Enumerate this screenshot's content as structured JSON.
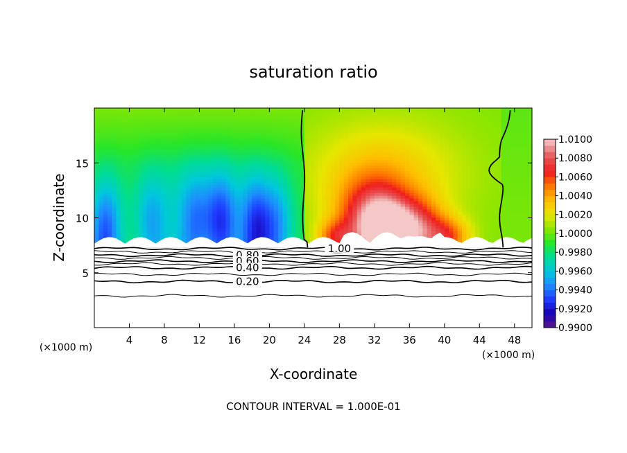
{
  "chart_data": {
    "type": "heatmap",
    "title": "saturation ratio",
    "xlabel": "X-coordinate",
    "ylabel": "Z-coordinate",
    "x_unit_left": "(×1000 m)",
    "x_unit_right": "(×1000 m)",
    "xlim": [
      0,
      50
    ],
    "ylim": [
      0,
      20
    ],
    "xticks": [
      4,
      8,
      12,
      16,
      20,
      24,
      28,
      32,
      36,
      40,
      44,
      48
    ],
    "yticks": [
      5,
      10,
      15
    ],
    "footer": "CONTOUR INTERVAL = 1.000E-01",
    "colorbar": {
      "labels": [
        "1.0100",
        "1.0080",
        "1.0060",
        "1.0040",
        "1.0020",
        "1.0000",
        "0.9980",
        "0.9960",
        "0.9940",
        "0.9920",
        "0.9900"
      ],
      "range": [
        0.99,
        1.01
      ],
      "stops": [
        {
          "v": 0.99,
          "c": "#5a1a8c"
        },
        {
          "v": 0.9915,
          "c": "#1a00b4"
        },
        {
          "v": 0.993,
          "c": "#1e3cff"
        },
        {
          "v": 0.9945,
          "c": "#1e8cff"
        },
        {
          "v": 0.996,
          "c": "#00c8dc"
        },
        {
          "v": 0.9975,
          "c": "#00dc96"
        },
        {
          "v": 0.999,
          "c": "#28e628"
        },
        {
          "v": 1.0005,
          "c": "#8ce600"
        },
        {
          "v": 1.002,
          "c": "#e6e600"
        },
        {
          "v": 1.0035,
          "c": "#ffbe00"
        },
        {
          "v": 1.005,
          "c": "#ff7800"
        },
        {
          "v": 1.0065,
          "c": "#f01e1e"
        },
        {
          "v": 1.008,
          "c": "#e65050"
        },
        {
          "v": 1.009,
          "c": "#eb8c8c"
        },
        {
          "v": 1.01,
          "c": "#f5c8c8"
        }
      ]
    },
    "saturated_region_base_km": 7.3,
    "contour_lines": [
      {
        "level": 1.0,
        "label": "1.00",
        "z_km": 7.2
      },
      {
        "level": 0.9,
        "label": "",
        "z_km": 6.9
      },
      {
        "level": 0.8,
        "label": "0.80",
        "z_km": 6.6
      },
      {
        "level": 0.7,
        "label": "",
        "z_km": 6.35
      },
      {
        "level": 0.6,
        "label": "0.60",
        "z_km": 6.05
      },
      {
        "level": 0.5,
        "label": "",
        "z_km": 5.8
      },
      {
        "level": 0.4,
        "label": "0.40",
        "z_km": 5.45
      },
      {
        "level": 0.3,
        "label": "",
        "z_km": 4.85
      },
      {
        "level": 0.2,
        "label": "0.20",
        "z_km": 4.2
      },
      {
        "level": 0.1,
        "label": "",
        "z_km": 2.9
      }
    ],
    "boundary_contour_level": 1.0
  }
}
